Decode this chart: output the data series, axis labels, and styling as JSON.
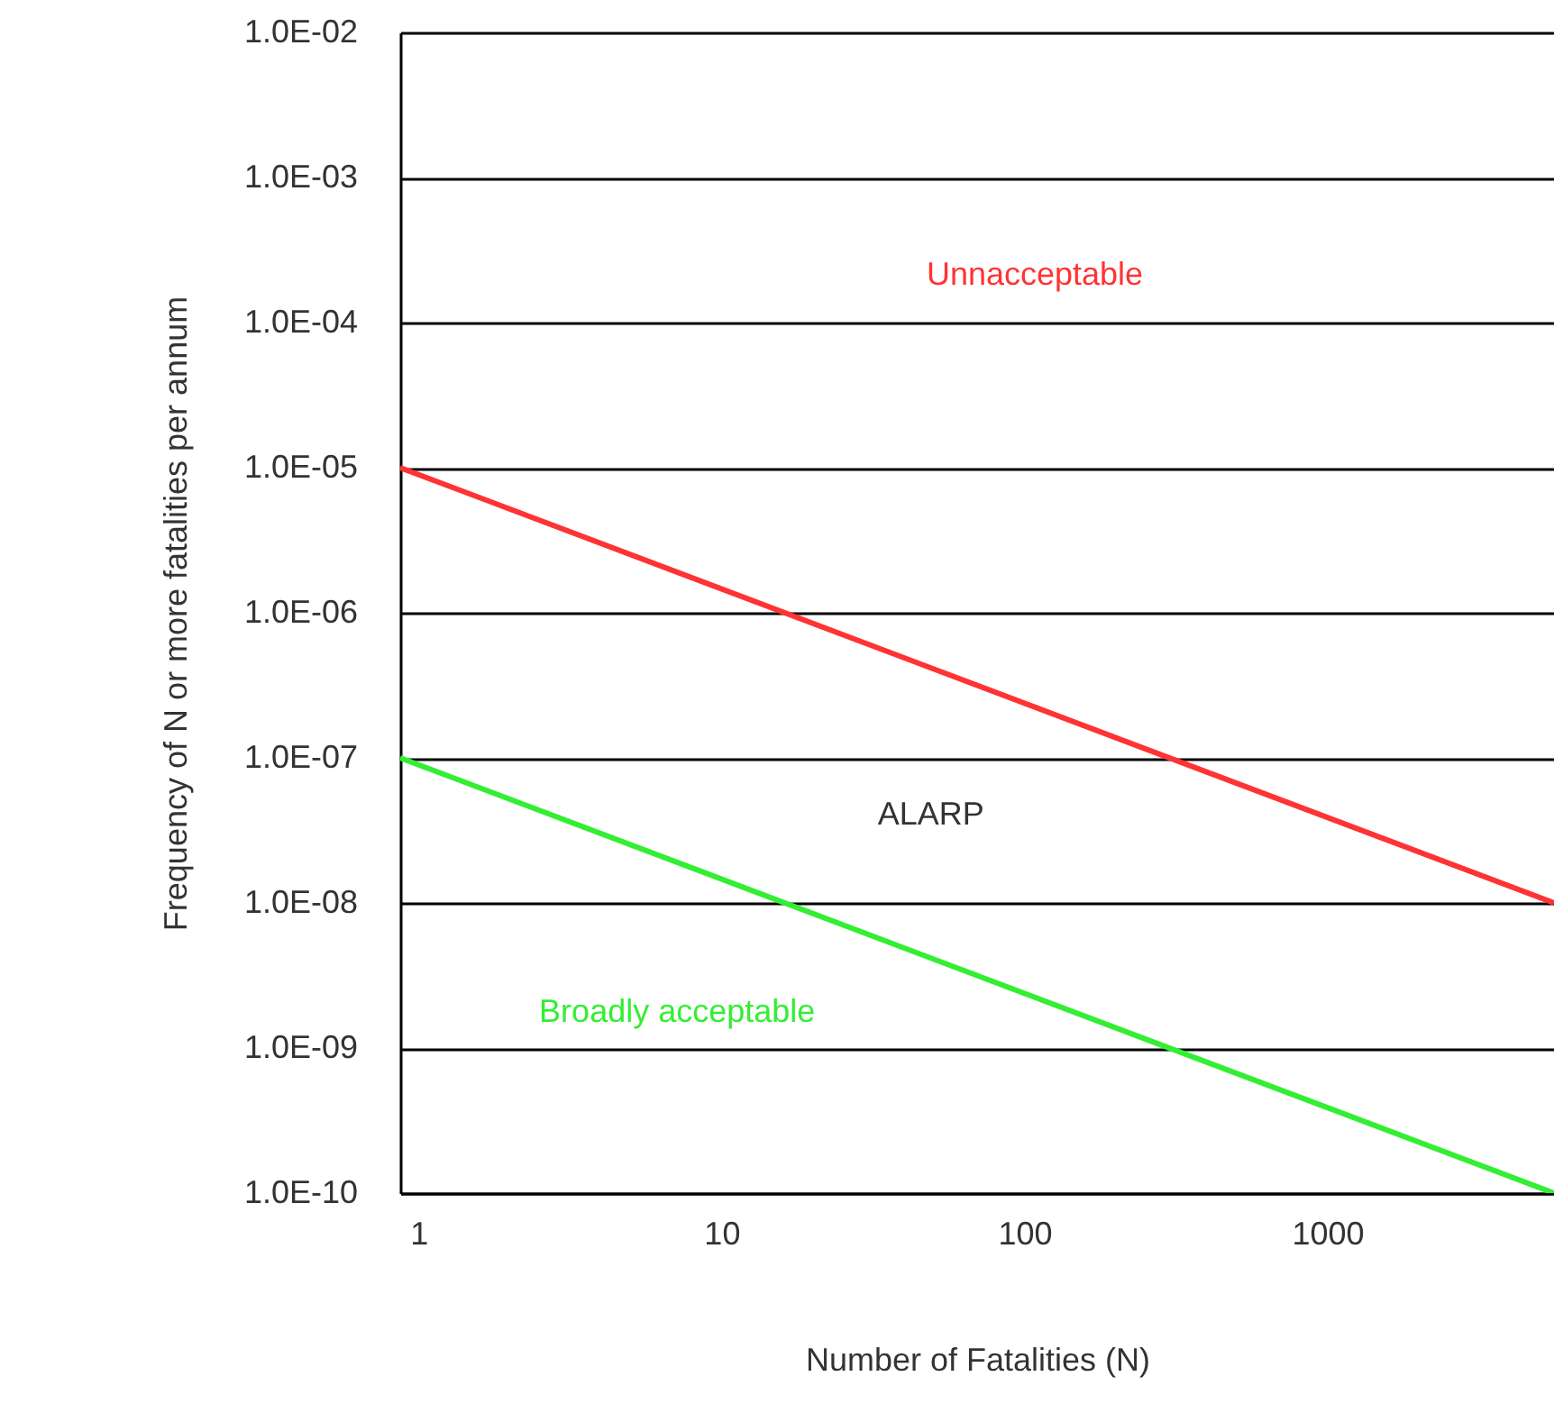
{
  "chart_data": {
    "type": "line",
    "xlabel": "Number of Fatalities (N)",
    "ylabel": "Frequency of N or more fatalities per annum",
    "x": [
      0.87,
      5600
    ],
    "series": [
      {
        "color": "#ff3333",
        "values": [
          1e-05,
          1e-08
        ]
      },
      {
        "color": "#33ee33",
        "values": [
          1e-07,
          1e-10
        ]
      }
    ],
    "log": "xy",
    "xlim": [
      0.87,
      5600
    ],
    "xticks": [
      1,
      10,
      100,
      1000
    ],
    "ylim": [
      1e-10,
      0.01
    ],
    "yticks": [
      {
        "value": 1e-10,
        "label": "1.0E-10"
      },
      {
        "value": 1e-09,
        "label": "1.0E-09"
      },
      {
        "value": 1e-08,
        "label": "1.0E-08"
      },
      {
        "value": 1e-07,
        "label": "1.0E-07"
      },
      {
        "value": 1e-06,
        "label": "1.0E-06"
      },
      {
        "value": 1e-05,
        "label": "1.0E-05"
      },
      {
        "value": 0.0001,
        "label": "1.0E-04"
      },
      {
        "value": 0.001,
        "label": "1.0E-03"
      },
      {
        "value": 0.01,
        "label": "1.0E-02"
      }
    ],
    "grid": "y",
    "marker": "none",
    "line_style": "solid",
    "annotations": [
      "Unnacceptable",
      "ALARP",
      "Broadly acceptable"
    ]
  }
}
